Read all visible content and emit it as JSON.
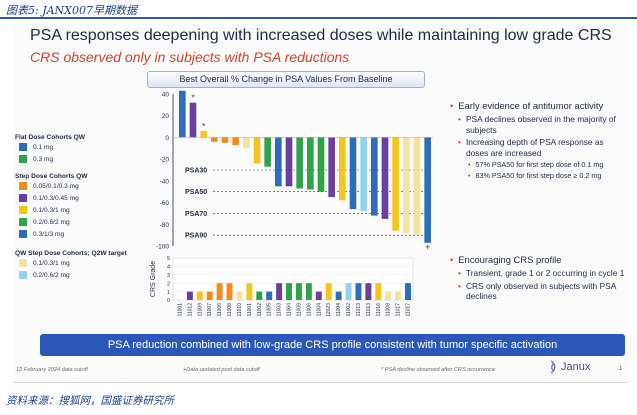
{
  "caption_top": "图表5: JANX007早期数据",
  "caption_bottom": "资料来源：搜狐网，国盛证券研究所",
  "slide": {
    "title": "PSA responses deepening with increased doses while maintaining low grade CRS",
    "subtitle": "CRS observed only in subjects with PSA reductions",
    "banner": "PSA reduction combined with low-grade CRS profile consistent with tumor specific activation",
    "footer_left": "12 February 2024 data cutoff",
    "footer_mid": "+Data updated post data cutoff",
    "footer_right": "* PSA decline observed after CRS occurrence",
    "logo_text": "Janux",
    "page_number": "1"
  },
  "legend": {
    "sections": [
      {
        "title": "Flat Dose Cohorts QW",
        "items": [
          {
            "label": "0.1 mg",
            "color": "#2d6db5"
          },
          {
            "label": "0.3 mg",
            "color": "#2fa24a"
          }
        ]
      },
      {
        "title": "Step Dose Cohorts QW",
        "items": [
          {
            "label": "0.05/0.1/0.3 mg",
            "color": "#f08c1e"
          },
          {
            "label": "0.1/0.3/0.45 mg",
            "color": "#6a3fa0"
          },
          {
            "label": "0.1/0.3/1 mg",
            "color": "#f6c51a"
          },
          {
            "label": "0.2/0.6/2 mg",
            "color": "#2fa24a"
          },
          {
            "label": "0.3/1/3 mg",
            "color": "#2d6db5"
          }
        ]
      },
      {
        "title": "QW Step Dose Cohorts; Q2W target",
        "items": [
          {
            "label": "0.1/0.3/1 mg",
            "color": "#f3e2a0"
          },
          {
            "label": "0.2/0.6/2 mg",
            "color": "#8fd3ef"
          }
        ]
      }
    ]
  },
  "bullets": {
    "b1": "Early evidence of antitumor activity",
    "b1a": "PSA declines observed in the majority of subjects",
    "b1b": "Increasing depth of PSA response as doses are increased",
    "b1b1": "57% PSA50 for first step dose of 0.1 mg",
    "b1b2": "83% PSA50 for first step dose ≥ 0.2 mg",
    "b2": "Encouraging CRS profile",
    "b2a": "Transient, grade 1 or 2 occurring in cycle 1",
    "b2b": "CRS only observed in subjects with PSA declines"
  },
  "chart_data": [
    {
      "type": "bar",
      "title": "Best Overall % Change in PSA Values From Baseline",
      "ylim": [
        -100,
        40
      ],
      "yticks": [
        "40",
        "20",
        "0",
        "-20",
        "-40",
        "-60",
        "-80",
        "-100"
      ],
      "reference_lines": [
        {
          "label": "PSA30",
          "value": -30
        },
        {
          "label": "PSA50",
          "value": -50
        },
        {
          "label": "PSA70",
          "value": -70
        },
        {
          "label": "PSA90",
          "value": -90
        }
      ],
      "bars": [
        {
          "value": 43,
          "color": "#2d6db5"
        },
        {
          "value": 32,
          "color": "#6a3fa0",
          "mark": "*"
        },
        {
          "value": 6,
          "color": "#f6c51a",
          "mark": "*"
        },
        {
          "value": -4,
          "color": "#f08c1e"
        },
        {
          "value": -5,
          "color": "#f08c1e"
        },
        {
          "value": -7,
          "color": "#f08c1e"
        },
        {
          "value": -10,
          "color": "#f3e2a0"
        },
        {
          "value": -24,
          "color": "#f6c51a"
        },
        {
          "value": -27,
          "color": "#2fa24a"
        },
        {
          "value": -45,
          "color": "#2d6db5"
        },
        {
          "value": -45,
          "color": "#6a3fa0"
        },
        {
          "value": -47,
          "color": "#2fa24a"
        },
        {
          "value": -48,
          "color": "#2fa24a"
        },
        {
          "value": -50,
          "color": "#2fa24a"
        },
        {
          "value": -55,
          "color": "#6a3fa0"
        },
        {
          "value": -58,
          "color": "#f6c51a"
        },
        {
          "value": -66,
          "color": "#2d6db5"
        },
        {
          "value": -68,
          "color": "#8fd3ef"
        },
        {
          "value": -72,
          "color": "#2d6db5"
        },
        {
          "value": -75,
          "color": "#6a3fa0"
        },
        {
          "value": -86,
          "color": "#f6c51a"
        },
        {
          "value": -88,
          "color": "#f3e2a0"
        },
        {
          "value": -90,
          "color": "#f3e2a0"
        },
        {
          "value": -97,
          "color": "#2d6db5",
          "mark": "+"
        }
      ]
    },
    {
      "type": "bar",
      "ylabel": "CRS Grade",
      "ylim": [
        0,
        5
      ],
      "yticks": [
        "5",
        "4",
        "3",
        "2",
        "1",
        "0"
      ],
      "categories": [
        "11001",
        "11012",
        "11009",
        "11007",
        "11006",
        "11008",
        "11010",
        "11001",
        "11002",
        "11005",
        "11003",
        "11004",
        "11009",
        "11006",
        "11004",
        "12023",
        "11004",
        "11002",
        "11013",
        "11013",
        "11016",
        "11008",
        "11017",
        "11017"
      ],
      "values": [
        0,
        1,
        1,
        1,
        2,
        2,
        1,
        2,
        1,
        1,
        2,
        2,
        2,
        2,
        1,
        2,
        1,
        2,
        2,
        2,
        2,
        1,
        1,
        2
      ],
      "colors": [
        "#2d6db5",
        "#6a3fa0",
        "#f6c51a",
        "#f08c1e",
        "#f08c1e",
        "#f08c1e",
        "#f3e2a0",
        "#f6c51a",
        "#2fa24a",
        "#2d6db5",
        "#6a3fa0",
        "#2fa24a",
        "#2fa24a",
        "#2fa24a",
        "#6a3fa0",
        "#f6c51a",
        "#2d6db5",
        "#8fd3ef",
        "#2d6db5",
        "#6a3fa0",
        "#f6c51a",
        "#f3e2a0",
        "#f3e2a0",
        "#2d6db5"
      ]
    }
  ]
}
